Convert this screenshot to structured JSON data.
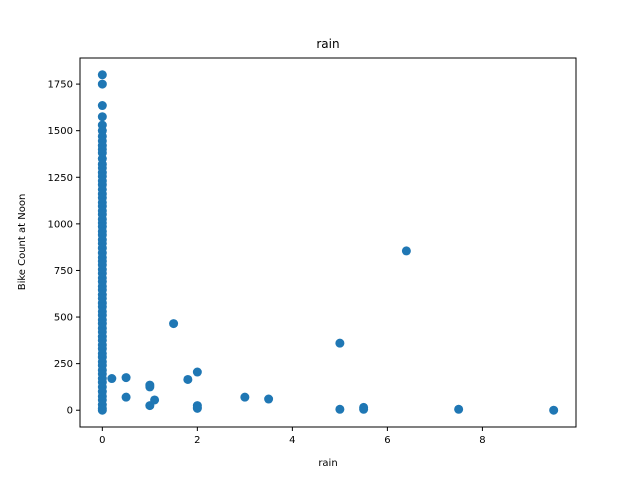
{
  "chart_data": {
    "type": "scatter",
    "title": "rain",
    "xlabel": "rain",
    "ylabel": "Bike Count at Noon",
    "xlim": [
      -0.47,
      9.97
    ],
    "ylim": [
      -90,
      1890
    ],
    "xticks": [
      0,
      2,
      4,
      6,
      8
    ],
    "yticks": [
      0,
      250,
      500,
      750,
      1000,
      1250,
      1500,
      1750
    ],
    "grid": false,
    "legend": "none",
    "marker_color": "#1f77b4",
    "points": [
      [
        0,
        1800
      ],
      [
        0,
        1750
      ],
      [
        0,
        1635
      ],
      [
        0,
        1575
      ],
      [
        0,
        1530
      ],
      [
        0,
        1500
      ],
      [
        0,
        1470
      ],
      [
        0,
        1445
      ],
      [
        0,
        1420
      ],
      [
        0,
        1400
      ],
      [
        0,
        1380
      ],
      [
        0,
        1350
      ],
      [
        0,
        1320
      ],
      [
        0,
        1300
      ],
      [
        0,
        1275
      ],
      [
        0,
        1255
      ],
      [
        0,
        1230
      ],
      [
        0,
        1210
      ],
      [
        0,
        1185
      ],
      [
        0,
        1160
      ],
      [
        0,
        1140
      ],
      [
        0,
        1115
      ],
      [
        0,
        1095
      ],
      [
        0,
        1070
      ],
      [
        0,
        1050
      ],
      [
        0,
        1025
      ],
      [
        0,
        1005
      ],
      [
        0,
        985
      ],
      [
        0,
        960
      ],
      [
        0,
        940
      ],
      [
        0,
        915
      ],
      [
        0,
        895
      ],
      [
        0,
        870
      ],
      [
        0,
        845
      ],
      [
        0,
        820
      ],
      [
        0,
        800
      ],
      [
        0,
        780
      ],
      [
        0,
        755
      ],
      [
        0,
        735
      ],
      [
        0,
        710
      ],
      [
        0,
        690
      ],
      [
        0,
        665
      ],
      [
        0,
        645
      ],
      [
        0,
        620
      ],
      [
        0,
        600
      ],
      [
        0,
        575
      ],
      [
        0,
        555
      ],
      [
        0,
        530
      ],
      [
        0,
        510
      ],
      [
        0,
        485
      ],
      [
        0,
        465
      ],
      [
        0,
        440
      ],
      [
        0,
        420
      ],
      [
        0,
        395
      ],
      [
        0,
        375
      ],
      [
        0,
        350
      ],
      [
        0,
        330
      ],
      [
        0,
        305
      ],
      [
        0,
        285
      ],
      [
        0,
        260
      ],
      [
        0,
        240
      ],
      [
        0,
        215
      ],
      [
        0,
        195
      ],
      [
        0,
        170
      ],
      [
        0,
        150
      ],
      [
        0,
        125
      ],
      [
        0,
        100
      ],
      [
        0,
        75
      ],
      [
        0,
        55
      ],
      [
        0,
        30
      ],
      [
        0,
        10
      ],
      [
        0,
        0
      ],
      [
        0.2,
        170
      ],
      [
        0.5,
        175
      ],
      [
        0.5,
        70
      ],
      [
        1,
        135
      ],
      [
        1,
        125
      ],
      [
        1,
        25
      ],
      [
        1.1,
        55
      ],
      [
        1.5,
        465
      ],
      [
        1.8,
        165
      ],
      [
        2,
        205
      ],
      [
        2,
        25
      ],
      [
        2,
        15
      ],
      [
        2,
        10
      ],
      [
        3,
        70
      ],
      [
        3.5,
        60
      ],
      [
        5,
        360
      ],
      [
        5,
        5
      ],
      [
        5.5,
        15
      ],
      [
        5.5,
        5
      ],
      [
        6.4,
        855
      ],
      [
        7.5,
        5
      ],
      [
        9.5,
        0
      ]
    ]
  }
}
